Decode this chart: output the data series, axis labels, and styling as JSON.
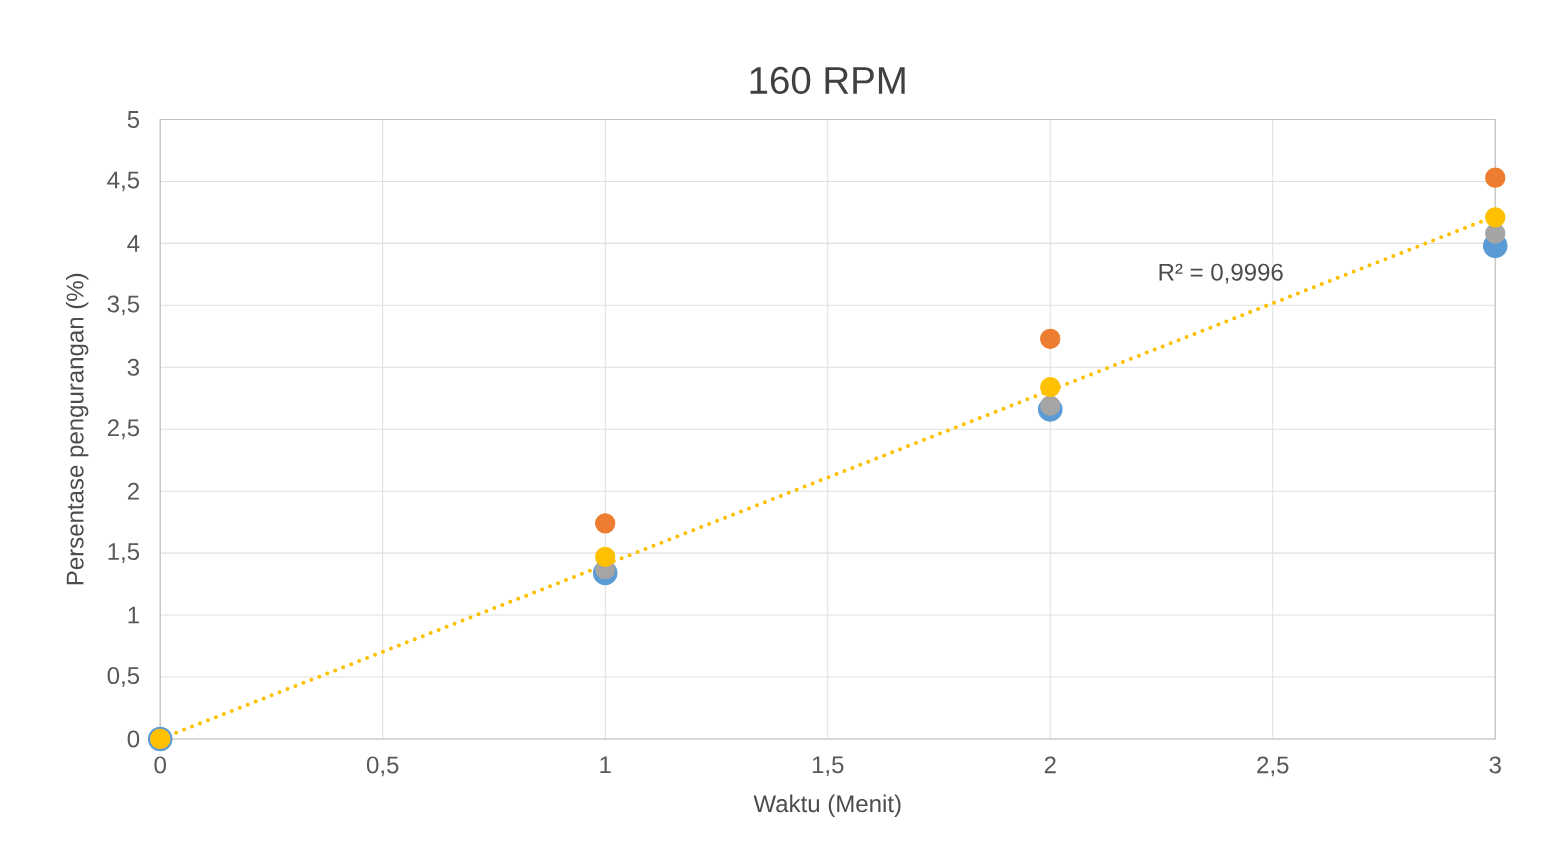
{
  "chart_data": {
    "type": "scatter",
    "title": "160 RPM",
    "xlabel": "Waktu (Menit)",
    "ylabel": "Persentase pengurangan (%)",
    "x": [
      0,
      1,
      2,
      3
    ],
    "series": [
      {
        "color": "#5b9bd5",
        "values": [
          0,
          1.34,
          2.66,
          3.98
        ]
      },
      {
        "color": "#ed7d31",
        "values": [
          0,
          1.74,
          3.23,
          4.53
        ]
      },
      {
        "color": "#a5a5a5",
        "values": [
          0,
          1.37,
          2.69,
          4.08
        ]
      },
      {
        "color": "#ffc000",
        "values": [
          0,
          1.47,
          2.84,
          4.21
        ]
      },
      {
        "type": "line",
        "color": "#ffc000",
        "x": [
          0,
          3
        ],
        "values": [
          0,
          4.22
        ],
        "line_style": "dotted",
        "marker": "none"
      }
    ],
    "annotations": [
      "R² = 0,9996"
    ],
    "xlim": [
      0,
      3
    ],
    "ylim": [
      0,
      5
    ],
    "xticks": [
      0,
      {
        "value": 0.5,
        "label": "0,5"
      },
      1,
      {
        "value": 1.5,
        "label": "1,5"
      },
      2,
      {
        "value": 2.5,
        "label": "2,5"
      },
      3
    ],
    "yticks": [
      0,
      {
        "value": 0.5,
        "label": "0,5"
      },
      1,
      {
        "value": 1.5,
        "label": "1,5"
      },
      2,
      {
        "value": 2.5,
        "label": "2,5"
      },
      3,
      {
        "value": 3.5,
        "label": "3,5"
      },
      4,
      {
        "value": 4.5,
        "label": "4,5"
      },
      5
    ],
    "grid": true,
    "marker": "circle"
  }
}
